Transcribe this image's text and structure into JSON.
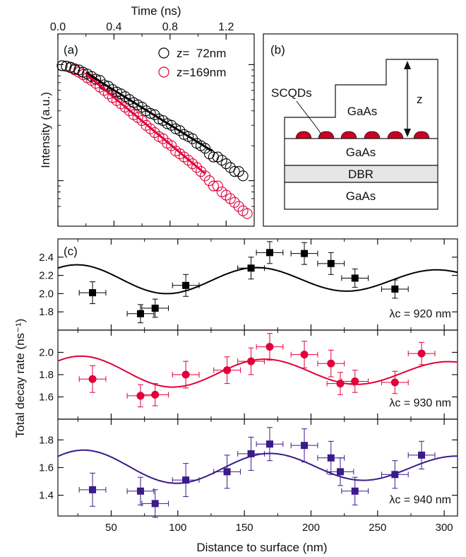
{
  "chart_data": [
    {
      "id": "a",
      "panel_label": "(a)",
      "type": "scatter",
      "xlabel": "Time (ns)",
      "ylabel": "Intensity (a.u.)",
      "xlim": [
        0,
        1.4
      ],
      "x_ticks": [
        0.0,
        0.4,
        0.8,
        1.2
      ],
      "x_tick_labels": [
        "0.0",
        "0.4",
        "0.8",
        "1.2"
      ],
      "y_scale": "log",
      "y_ticks_labeled": false,
      "legend_position": "top-right",
      "series": [
        {
          "name": "z=  72nm",
          "color": "#000000",
          "marker": "open-circle",
          "x": [
            0.03,
            0.06,
            0.09,
            0.12,
            0.15,
            0.18,
            0.21,
            0.24,
            0.27,
            0.3,
            0.33,
            0.36,
            0.39,
            0.42,
            0.45,
            0.48,
            0.51,
            0.54,
            0.57,
            0.6,
            0.63,
            0.66,
            0.69,
            0.72,
            0.75,
            0.78,
            0.81,
            0.84,
            0.87,
            0.9,
            0.93,
            0.96,
            0.99,
            1.02,
            1.05,
            1.08,
            1.11,
            1.14,
            1.17,
            1.2,
            1.23,
            1.26,
            1.29,
            1.32
          ],
          "y": [
            0.98,
            0.97,
            0.95,
            0.92,
            0.9,
            0.86,
            0.83,
            0.79,
            0.75,
            0.73,
            0.67,
            0.65,
            0.61,
            0.58,
            0.56,
            0.53,
            0.5,
            0.47,
            0.45,
            0.43,
            0.4,
            0.38,
            0.37,
            0.34,
            0.33,
            0.31,
            0.3,
            0.28,
            0.27,
            0.25,
            0.24,
            0.23,
            0.21,
            0.2,
            0.19,
            0.17,
            0.16,
            0.16,
            0.15,
            0.14,
            0.13,
            0.12,
            0.12,
            0.11
          ],
          "fit_x": [
            0.2,
            1.1
          ],
          "fit_y": [
            0.85,
            0.18
          ],
          "fit_color": "#000000"
        },
        {
          "name": "z=169nm",
          "color": "#e0003a",
          "marker": "open-circle",
          "x": [
            0.03,
            0.06,
            0.09,
            0.12,
            0.15,
            0.18,
            0.21,
            0.24,
            0.27,
            0.3,
            0.33,
            0.36,
            0.39,
            0.42,
            0.45,
            0.48,
            0.51,
            0.54,
            0.57,
            0.6,
            0.63,
            0.66,
            0.69,
            0.72,
            0.75,
            0.78,
            0.81,
            0.84,
            0.87,
            0.9,
            0.93,
            0.96,
            0.99,
            1.02,
            1.05,
            1.08,
            1.11,
            1.14,
            1.17,
            1.2,
            1.23,
            1.26,
            1.29,
            1.32,
            1.35
          ],
          "y": [
            0.98,
            0.97,
            0.94,
            0.9,
            0.86,
            0.82,
            0.77,
            0.73,
            0.69,
            0.64,
            0.6,
            0.56,
            0.52,
            0.49,
            0.46,
            0.43,
            0.4,
            0.37,
            0.35,
            0.33,
            0.3,
            0.28,
            0.26,
            0.24,
            0.23,
            0.21,
            0.2,
            0.18,
            0.17,
            0.16,
            0.15,
            0.14,
            0.13,
            0.12,
            0.11,
            0.1,
            0.09,
            0.09,
            0.08,
            0.075,
            0.07,
            0.065,
            0.06,
            0.055,
            0.052
          ],
          "fit_x": [
            0.2,
            1.05
          ],
          "fit_y": [
            0.83,
            0.115
          ],
          "fit_color": "#e0003a"
        }
      ]
    },
    {
      "id": "b",
      "panel_label": "(b)",
      "type": "schematic",
      "labels": {
        "scqds": "SCQDs",
        "gaas_top": "GaAs",
        "z": "z",
        "gaas_mid": "GaAs",
        "dbr": "DBR",
        "gaas_bottom": "GaAs"
      },
      "dot_color": "#cc0022"
    },
    {
      "id": "c",
      "panel_label": "(c)",
      "type": "scatter",
      "xlabel": "Distance to surface (nm)",
      "ylabel": "Total decay rate (ns⁻¹)",
      "xlim": [
        10,
        310
      ],
      "x_ticks": [
        50,
        100,
        150,
        200,
        250,
        300
      ],
      "subplots": [
        {
          "annotation": "λc = 920 nm",
          "color": "#000000",
          "marker": "filled-square",
          "ylim": [
            1.6,
            2.6
          ],
          "y_ticks": [
            1.8,
            2.0,
            2.2,
            2.4
          ],
          "y_tick_labels": [
            "1.8",
            "2.0",
            "2.2",
            "2.4"
          ],
          "points": [
            {
              "x": 36,
              "y": 2.01,
              "xerr": 10,
              "yerr": 0.12
            },
            {
              "x": 72,
              "y": 1.78,
              "xerr": 10,
              "yerr": 0.1
            },
            {
              "x": 83,
              "y": 1.84,
              "xerr": 10,
              "yerr": 0.1
            },
            {
              "x": 106,
              "y": 2.09,
              "xerr": 10,
              "yerr": 0.12
            },
            {
              "x": 155,
              "y": 2.28,
              "xerr": 10,
              "yerr": 0.12
            },
            {
              "x": 169,
              "y": 2.45,
              "xerr": 10,
              "yerr": 0.12
            },
            {
              "x": 195,
              "y": 2.44,
              "xerr": 10,
              "yerr": 0.12
            },
            {
              "x": 215,
              "y": 2.33,
              "xerr": 10,
              "yerr": 0.12
            },
            {
              "x": 233,
              "y": 2.17,
              "xerr": 10,
              "yerr": 0.1
            },
            {
              "x": 263,
              "y": 2.05,
              "xerr": 10,
              "yerr": 0.1
            }
          ],
          "model": {
            "mean": 2.15,
            "amp": 0.17,
            "amp_decay": 0.0015,
            "period": 135,
            "phase_x": 25
          }
        },
        {
          "annotation": "λc = 930 nm",
          "color": "#e0003a",
          "marker": "filled-circle",
          "ylim": [
            1.4,
            2.2
          ],
          "y_ticks": [
            1.6,
            1.8,
            2.0
          ],
          "y_tick_labels": [
            "1.6",
            "1.8",
            "2.0"
          ],
          "points": [
            {
              "x": 36,
              "y": 1.76,
              "xerr": 10,
              "yerr": 0.12
            },
            {
              "x": 72,
              "y": 1.61,
              "xerr": 10,
              "yerr": 0.1
            },
            {
              "x": 83,
              "y": 1.62,
              "xerr": 10,
              "yerr": 0.1
            },
            {
              "x": 106,
              "y": 1.8,
              "xerr": 10,
              "yerr": 0.12
            },
            {
              "x": 137,
              "y": 1.84,
              "xerr": 10,
              "yerr": 0.12
            },
            {
              "x": 155,
              "y": 1.92,
              "xerr": 10,
              "yerr": 0.12
            },
            {
              "x": 169,
              "y": 2.05,
              "xerr": 10,
              "yerr": 0.12
            },
            {
              "x": 195,
              "y": 1.98,
              "xerr": 10,
              "yerr": 0.12
            },
            {
              "x": 215,
              "y": 1.9,
              "xerr": 10,
              "yerr": 0.12
            },
            {
              "x": 222,
              "y": 1.72,
              "xerr": 10,
              "yerr": 0.1
            },
            {
              "x": 233,
              "y": 1.74,
              "xerr": 10,
              "yerr": 0.1
            },
            {
              "x": 263,
              "y": 1.73,
              "xerr": 10,
              "yerr": 0.1
            },
            {
              "x": 283,
              "y": 1.99,
              "xerr": 10,
              "yerr": 0.1
            }
          ],
          "model": {
            "mean": 1.82,
            "amp": 0.15,
            "amp_decay": 0.0015,
            "period": 138,
            "phase_x": 28
          }
        },
        {
          "annotation": "λc = 940 nm",
          "color": "#3b1a8a",
          "marker": "filled-square",
          "ylim": [
            1.25,
            1.95
          ],
          "y_ticks": [
            1.4,
            1.6,
            1.8
          ],
          "y_tick_labels": [
            "1.4",
            "1.6",
            "1.8"
          ],
          "points": [
            {
              "x": 36,
              "y": 1.44,
              "xerr": 10,
              "yerr": 0.12
            },
            {
              "x": 72,
              "y": 1.43,
              "xerr": 10,
              "yerr": 0.1
            },
            {
              "x": 83,
              "y": 1.34,
              "xerr": 10,
              "yerr": 0.1
            },
            {
              "x": 106,
              "y": 1.51,
              "xerr": 10,
              "yerr": 0.12
            },
            {
              "x": 137,
              "y": 1.57,
              "xerr": 10,
              "yerr": 0.12
            },
            {
              "x": 155,
              "y": 1.7,
              "xerr": 10,
              "yerr": 0.12
            },
            {
              "x": 169,
              "y": 1.77,
              "xerr": 10,
              "yerr": 0.12
            },
            {
              "x": 195,
              "y": 1.76,
              "xerr": 10,
              "yerr": 0.12
            },
            {
              "x": 215,
              "y": 1.67,
              "xerr": 10,
              "yerr": 0.12
            },
            {
              "x": 222,
              "y": 1.57,
              "xerr": 10,
              "yerr": 0.1
            },
            {
              "x": 233,
              "y": 1.43,
              "xerr": 10,
              "yerr": 0.1
            },
            {
              "x": 263,
              "y": 1.55,
              "xerr": 10,
              "yerr": 0.1
            },
            {
              "x": 283,
              "y": 1.69,
              "xerr": 10,
              "yerr": 0.1
            }
          ],
          "model": {
            "mean": 1.6,
            "amp": 0.13,
            "amp_decay": 0.0015,
            "period": 140,
            "phase_x": 30
          }
        }
      ]
    }
  ]
}
